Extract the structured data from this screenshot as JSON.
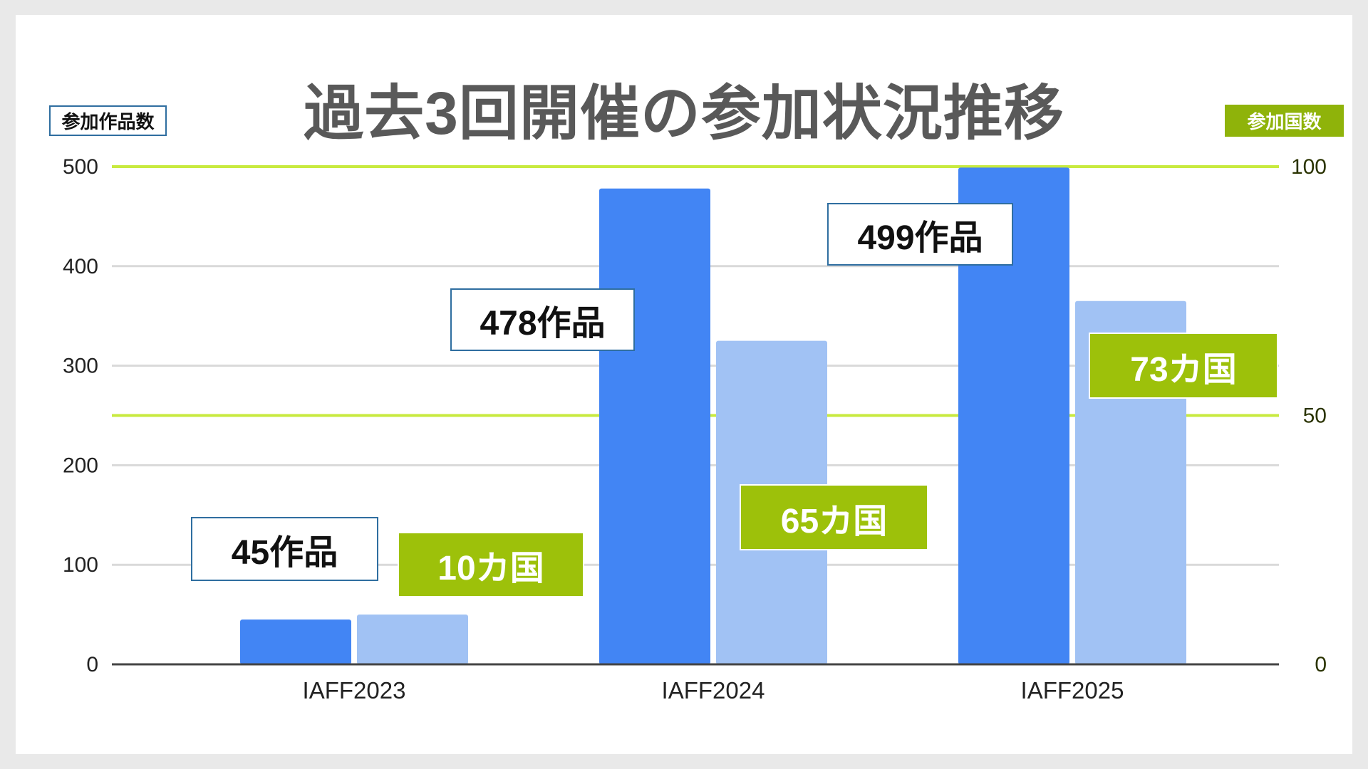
{
  "chart_data": {
    "type": "bar",
    "title": "過去3回開催の参加状況推移",
    "categories": [
      "IAFF2023",
      "IAFF2024",
      "IAFF2025"
    ],
    "left_axis": {
      "label": "参加作品数",
      "range": [
        0,
        500
      ],
      "ticks": [
        "0",
        "100",
        "200",
        "300",
        "400",
        "500"
      ]
    },
    "right_axis": {
      "label": "参加国数",
      "range": [
        0,
        100
      ],
      "ticks": [
        "0",
        "50",
        "100"
      ]
    },
    "series": [
      {
        "axis": "left",
        "values": [
          45,
          478,
          499
        ],
        "color": "#4285f4",
        "data_labels": [
          "45作品",
          "478作品",
          "499作品"
        ]
      },
      {
        "axis": "right",
        "values": [
          10,
          65,
          73
        ],
        "color": "#a1c2f4",
        "data_labels": [
          "10カ国",
          "65カ国",
          "73カ国"
        ]
      }
    ],
    "grid": true,
    "colors": {
      "grid": "#d9d9d9",
      "right_gridline": "#c8ea3f",
      "label_green": "#9dc10a",
      "label_border": "#2f6ea0"
    }
  }
}
